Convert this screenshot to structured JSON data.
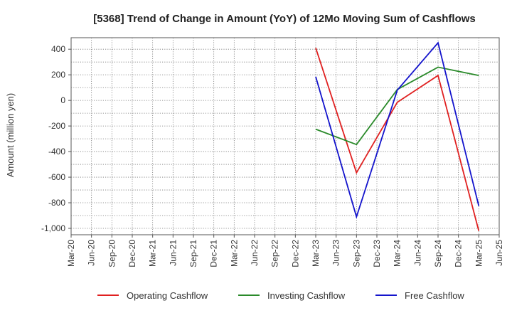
{
  "chart_data": {
    "type": "line",
    "title": "[5368]  Trend of Change in Amount (YoY) of 12Mo Moving Sum of Cashflows",
    "xlabel": "",
    "ylabel": "Amount (million yen)",
    "ylim": [
      -1050,
      490
    ],
    "yticks": [
      400,
      200,
      0,
      -200,
      -400,
      -600,
      -800,
      -1000
    ],
    "ytick_labels": [
      "400",
      "200",
      "0",
      "-200",
      "-400",
      "-600",
      "-800",
      "-1,000"
    ],
    "categories": [
      "Mar-20",
      "Jun-20",
      "Sep-20",
      "Dec-20",
      "Mar-21",
      "Jun-21",
      "Sep-21",
      "Dec-21",
      "Mar-22",
      "Jun-22",
      "Sep-22",
      "Dec-22",
      "Mar-23",
      "Jun-23",
      "Sep-23",
      "Dec-23",
      "Mar-24",
      "Jun-24",
      "Sep-24",
      "Dec-24",
      "Mar-25",
      "Jun-25"
    ],
    "grid": true,
    "legend_position": "bottom",
    "series": [
      {
        "name": "Operating Cashflow",
        "color": "#e02020",
        "values": [
          null,
          null,
          null,
          null,
          null,
          null,
          null,
          null,
          null,
          null,
          null,
          null,
          410,
          null,
          -565,
          null,
          -15,
          null,
          195,
          null,
          -1020,
          null
        ]
      },
      {
        "name": "Investing Cashflow",
        "color": "#2a8a2a",
        "values": [
          null,
          null,
          null,
          null,
          null,
          null,
          null,
          null,
          null,
          null,
          null,
          null,
          -225,
          null,
          -345,
          null,
          85,
          null,
          260,
          null,
          195,
          null
        ]
      },
      {
        "name": "Free Cashflow",
        "color": "#1414cc",
        "values": [
          null,
          null,
          null,
          null,
          null,
          null,
          null,
          null,
          null,
          null,
          null,
          null,
          185,
          null,
          -910,
          null,
          80,
          null,
          450,
          null,
          -825,
          null
        ]
      }
    ]
  }
}
